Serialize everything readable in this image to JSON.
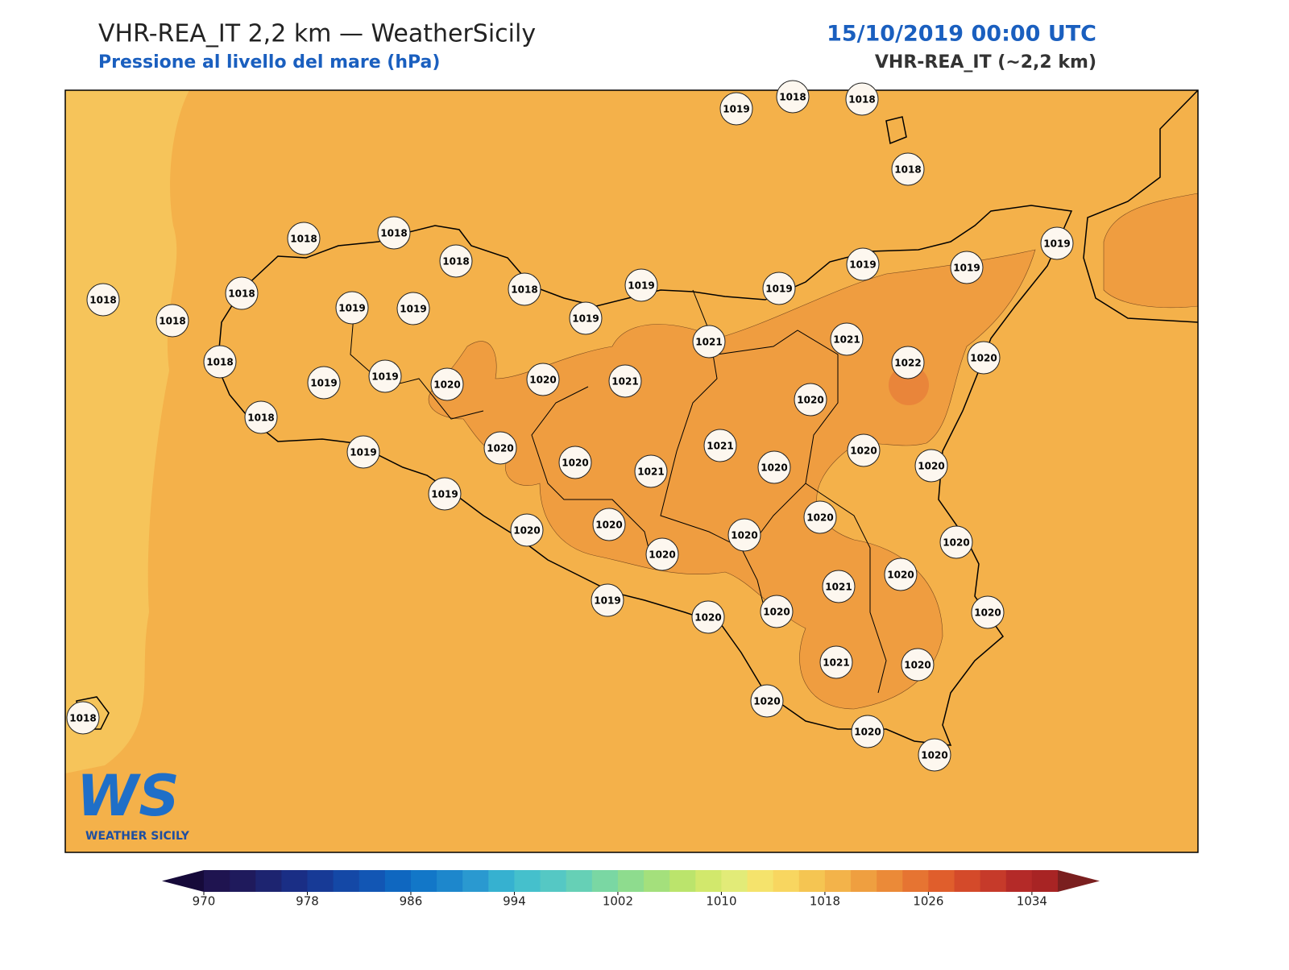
{
  "header": {
    "title": "VHR-REA_IT 2,2 km — WeatherSicily",
    "subtitle": "Pressione al livello del mare (hPa)",
    "datetime": "15/10/2019 00:00 UTC",
    "model": "VHR-REA_IT (~2,2 km)"
  },
  "station_values": [
    1019,
    1018,
    1018,
    1018,
    1018,
    1018,
    1018,
    1018,
    1018,
    1018,
    1018,
    1019,
    1019,
    1019,
    1019,
    1019,
    1019,
    1019,
    1019,
    1018,
    1019,
    1019,
    1020,
    1020,
    1021,
    1021,
    1021,
    1022,
    1020,
    1020,
    1018,
    1019,
    1020,
    1020,
    1021,
    1021,
    1020,
    1020,
    1020,
    1019,
    1020,
    1020,
    1020,
    1020,
    1020,
    1020,
    1020,
    1021,
    1019,
    1020,
    1020,
    1020,
    1021,
    1020,
    1020,
    1020,
    1020,
    1018
  ],
  "map_fill": {
    "base": "#f4b14a",
    "west": "#f6c45a",
    "high": "#ef9d40",
    "peak": "#e9853a"
  },
  "colorbar": {
    "lim": [
      970,
      1036
    ],
    "ticks": [
      970,
      978,
      986,
      994,
      1002,
      1010,
      1018,
      1026,
      1034
    ],
    "under": "#160a3a",
    "over": "#7a1f1f",
    "colors": [
      "#1f1450",
      "#1f1a5c",
      "#1d2470",
      "#1a2e85",
      "#173a96",
      "#1448a6",
      "#1256b4",
      "#0f67c0",
      "#1277c8",
      "#1d87cc",
      "#2a99d0",
      "#36b1d0",
      "#45c0cc",
      "#55c8c4",
      "#66d0b6",
      "#7ad7a3",
      "#8edc8e",
      "#a4e07c",
      "#bbe46c",
      "#d2e86c",
      "#e2eb78",
      "#f5e36c",
      "#f8d660",
      "#f5c552",
      "#f3b34a",
      "#ef9f40",
      "#eb8a38",
      "#e67432",
      "#e05e2c",
      "#d44a2a",
      "#c63a2a",
      "#b42a28",
      "#a82424"
    ]
  },
  "logo": {
    "mark": "WS",
    "caption": "WEATHER SICILY"
  }
}
